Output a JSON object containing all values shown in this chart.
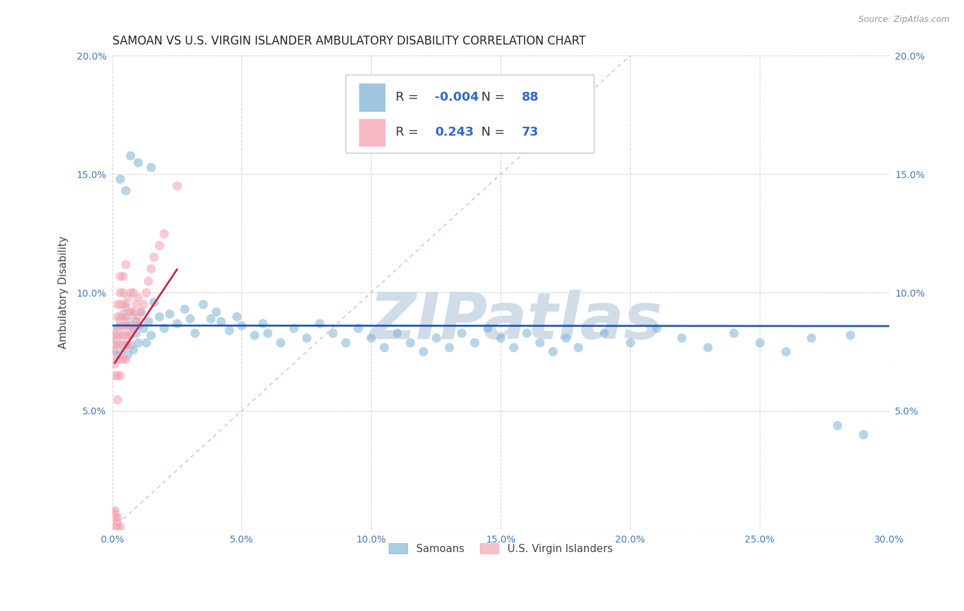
{
  "title": "SAMOAN VS U.S. VIRGIN ISLANDER AMBULATORY DISABILITY CORRELATION CHART",
  "source": "Source: ZipAtlas.com",
  "ylabel": "Ambulatory Disability",
  "xlim": [
    0.0,
    0.3
  ],
  "ylim": [
    0.0,
    0.2
  ],
  "xticks": [
    0.0,
    0.05,
    0.1,
    0.15,
    0.2,
    0.25,
    0.3
  ],
  "yticks": [
    0.0,
    0.05,
    0.1,
    0.15,
    0.2
  ],
  "xtick_labels": [
    "0.0%",
    "5.0%",
    "10.0%",
    "15.0%",
    "20.0%",
    "25.0%",
    "30.0%"
  ],
  "ytick_labels_left": [
    "",
    "5.0%",
    "10.0%",
    "15.0%",
    "20.0%"
  ],
  "ytick_labels_right": [
    "",
    "5.0%",
    "10.0%",
    "15.0%",
    "20.0%"
  ],
  "blue_color": "#7FB3D3",
  "pink_color": "#F4A0B0",
  "blue_line_color": "#2255AA",
  "pink_line_color": "#CC2244",
  "diag_color": "#E0AAAA",
  "blue_R": -0.004,
  "blue_N": 88,
  "pink_R": 0.243,
  "pink_N": 73,
  "legend_label_blue": "Samoans",
  "legend_label_pink": "U.S. Virgin Islanders",
  "watermark": "ZIPatlas",
  "watermark_color": "#D0DCE8",
  "background_color": "#FFFFFF",
  "grid_color": "#CCCCCC",
  "tick_color": "#4477BB",
  "title_color": "#222222",
  "legend_text_color": "#333333",
  "legend_value_color": "#3366CC",
  "source_color": "#999999"
}
